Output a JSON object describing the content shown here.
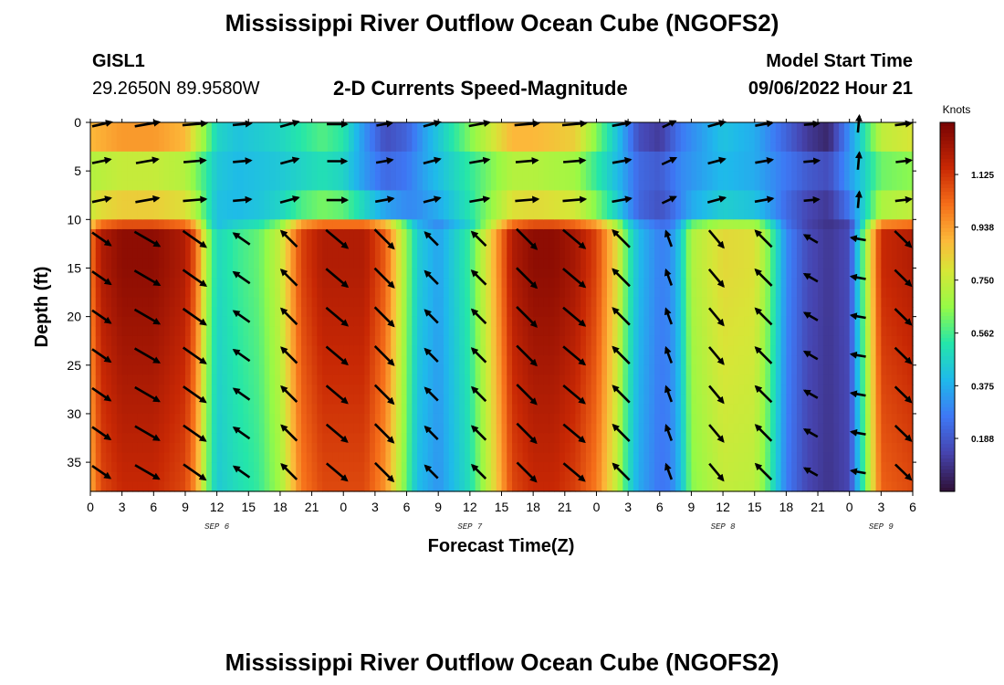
{
  "header": {
    "title": "Mississippi River Outflow Ocean Cube (NGOFS2)",
    "station_id": "GISL1",
    "station_coords": "29.2650N  89.9580W",
    "subtitle": "2-D Currents Speed-Magnitude",
    "model_start_label": "Model Start Time",
    "model_start_value": "09/06/2022 Hour 21"
  },
  "footer": {
    "title": "Mississippi River Outflow Ocean Cube (NGOFS2)"
  },
  "chart_data": {
    "type": "heatmap",
    "title": "2-D Currents Speed-Magnitude",
    "xlabel": "Forecast Time(Z)",
    "ylabel": "Depth (ft)",
    "xlim": [
      0,
      78
    ],
    "ylim": [
      0,
      38
    ],
    "x_ticks": [
      0,
      3,
      6,
      9,
      12,
      15,
      18,
      21,
      24,
      27,
      30,
      33,
      36,
      39,
      42,
      45,
      48,
      51,
      54,
      57,
      60,
      63,
      66,
      69,
      72,
      75,
      78
    ],
    "x_tick_labels": [
      "0",
      "3",
      "6",
      "9",
      "12",
      "15",
      "18",
      "21",
      "0",
      "3",
      "6",
      "9",
      "12",
      "15",
      "18",
      "21",
      "0",
      "3",
      "6",
      "9",
      "12",
      "15",
      "18",
      "21",
      "0",
      "3",
      "6"
    ],
    "day_labels": [
      {
        "label": "SEP 6",
        "x": 12
      },
      {
        "label": "SEP 7",
        "x": 36
      },
      {
        "label": "SEP 8",
        "x": 60
      },
      {
        "label": "SEP 9",
        "x": 75
      }
    ],
    "y_ticks": [
      0,
      5,
      10,
      15,
      20,
      25,
      30,
      35
    ],
    "y_tick_labels": [
      "0",
      "5",
      "10",
      "15",
      "20",
      "25",
      "30",
      "35"
    ],
    "colorbar": {
      "unit": "Knots",
      "min": 0.0,
      "max": 1.31,
      "ticks": [
        0.188,
        0.375,
        0.562,
        0.75,
        0.938,
        1.125
      ],
      "tick_labels": [
        "0.188",
        "0.375",
        "0.562",
        "0.750",
        "0.938",
        "1.125"
      ]
    },
    "speed_model": {
      "note": "Estimated speed by time (hours) for lower (>=10 ft) and upper (<10 ft) layers",
      "lower_times": [
        0,
        1,
        3,
        6,
        9,
        10,
        11,
        12,
        14,
        16,
        18,
        20,
        22,
        26,
        28,
        30,
        31,
        33,
        36,
        38,
        40,
        42,
        44,
        46,
        48,
        50,
        51,
        52,
        54,
        55,
        56,
        57,
        60,
        63,
        64,
        65,
        66,
        68,
        70,
        72,
        73,
        75,
        78
      ],
      "lower_speeds": [
        1.0,
        1.2,
        1.27,
        1.27,
        1.2,
        1.05,
        0.7,
        0.48,
        0.55,
        0.6,
        0.75,
        1.1,
        1.2,
        1.2,
        1.05,
        0.65,
        0.45,
        0.35,
        0.55,
        0.85,
        1.2,
        1.27,
        1.27,
        1.22,
        1.1,
        0.8,
        0.55,
        0.4,
        0.28,
        0.3,
        0.45,
        0.7,
        0.82,
        0.8,
        0.68,
        0.5,
        0.3,
        0.15,
        0.1,
        0.15,
        0.5,
        1.15,
        1.2
      ],
      "upper_times": [
        0,
        3,
        6,
        9,
        11,
        12,
        14,
        18,
        22,
        24,
        26,
        28,
        30,
        32,
        36,
        40,
        42,
        46,
        50,
        52,
        54,
        56,
        60,
        63,
        66,
        68,
        70,
        72,
        75,
        78
      ],
      "upper_speeds": [
        0.85,
        0.9,
        0.9,
        0.85,
        0.6,
        0.45,
        0.4,
        0.45,
        0.55,
        0.5,
        0.3,
        0.15,
        0.2,
        0.35,
        0.6,
        0.85,
        0.85,
        0.8,
        0.4,
        0.15,
        0.1,
        0.25,
        0.4,
        0.35,
        0.2,
        0.1,
        0.05,
        0.3,
        0.7,
        0.75
      ]
    },
    "vectors": {
      "note": "Current arrows; direction in degrees (0 = east, 90 = north), relative length 0..1",
      "arrow_times": [
        0,
        4.5,
        9,
        13.5,
        18,
        22.5,
        27,
        31.5,
        36,
        40.5,
        45,
        49.5,
        54,
        58.5,
        63,
        67.5,
        72,
        76.5
      ],
      "arrow_depths": [
        0,
        4,
        8,
        12,
        16,
        20,
        24,
        28,
        32,
        36
      ],
      "lower_direction_by_time": [
        -30,
        -30,
        -35,
        145,
        135,
        -40,
        -45,
        135,
        135,
        -45,
        -40,
        135,
        110,
        -50,
        135,
        150,
        170,
        -35
      ],
      "upper_direction_by_time": [
        10,
        10,
        5,
        5,
        15,
        0,
        10,
        15,
        10,
        5,
        5,
        10,
        25,
        15,
        10,
        5,
        85,
        5
      ]
    }
  }
}
